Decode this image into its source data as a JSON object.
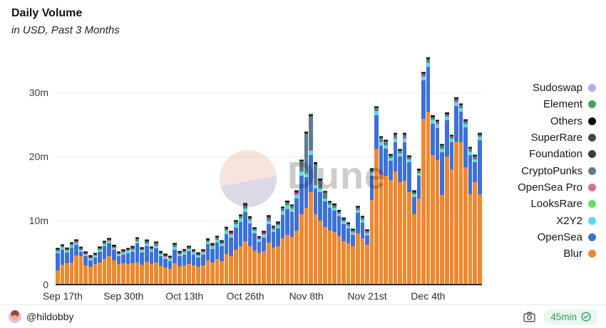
{
  "header": {
    "title": "Daily Volume",
    "subtitle": "in USD, Past 3 Months"
  },
  "watermark": {
    "text": "Dune"
  },
  "footer": {
    "author": "@hildobby",
    "camera_icon": "camera-icon",
    "badge": {
      "label": "45min",
      "check_icon": "check-circle-icon",
      "color": "#2ca05a",
      "bg": "#e9f7ef"
    }
  },
  "chart_data": {
    "type": "bar",
    "stacked": true,
    "title": "Daily Volume",
    "subtitle": "in USD, Past 3 Months",
    "unit": "USD (millions)",
    "grid": true,
    "legend_position": "right",
    "date_range": {
      "start": "Sep 16",
      "end": "Dec 15",
      "days": 91
    },
    "y_max": 35.6,
    "y_ticks": [
      {
        "label": "0",
        "value": 0
      },
      {
        "label": "10m",
        "value": 10
      },
      {
        "label": "20m",
        "value": 20
      },
      {
        "label": "30m",
        "value": 30
      }
    ],
    "x_ticks": [
      {
        "label": "Sep 17th",
        "day_index": 1
      },
      {
        "label": "Sep 30th",
        "day_index": 14
      },
      {
        "label": "Oct 13th",
        "day_index": 27
      },
      {
        "label": "Oct 26th",
        "day_index": 40
      },
      {
        "label": "Nov 8th",
        "day_index": 53
      },
      {
        "label": "Nov 21st",
        "day_index": 66
      },
      {
        "label": "Dec 4th",
        "day_index": 79
      }
    ],
    "series": [
      {
        "name": "Blur",
        "color": "#f0882e",
        "values": [
          2.2,
          3.1,
          3.3,
          3.5,
          4.6,
          4.4,
          3.0,
          2.8,
          3.2,
          3.4,
          4.0,
          4.5,
          3.8,
          3.2,
          3.3,
          3.2,
          3.3,
          3.5,
          3.1,
          3.6,
          3.2,
          3.4,
          2.9,
          2.7,
          2.5,
          3.3,
          2.9,
          3.0,
          3.2,
          3.0,
          2.8,
          3.0,
          3.8,
          3.4,
          4.0,
          3.7,
          4.8,
          4.5,
          5.4,
          6.0,
          6.8,
          6.0,
          5.3,
          5.0,
          5.2,
          6.6,
          5.8,
          6.0,
          7.2,
          7.8,
          7.5,
          8.5,
          11.0,
          12.0,
          14.5,
          11.0,
          10.0,
          9.0,
          8.5,
          8.2,
          7.6,
          6.8,
          6.4,
          6.0,
          8.0,
          7.2,
          6.2,
          13.2,
          21.2,
          17.3,
          17.0,
          16.3,
          17.7,
          16.0,
          16.2,
          14.5,
          11.0,
          13.5,
          25.9,
          27.0,
          20.2,
          19.5,
          14.0,
          20.0,
          18.0,
          22.4,
          22.3,
          18.4,
          14.1,
          16.0,
          14.1
        ]
      },
      {
        "name": "OpenSea",
        "color": "#3d70d8",
        "values": [
          2.7,
          2.4,
          1.7,
          2.3,
          1.6,
          0.7,
          1.4,
          1.0,
          1.0,
          1.7,
          2.0,
          2.0,
          1.6,
          1.2,
          1.4,
          1.7,
          1.8,
          2.9,
          1.9,
          2.4,
          1.9,
          2.3,
          1.5,
          1.3,
          1.2,
          2.2,
          1.5,
          1.7,
          2.0,
          1.7,
          1.4,
          1.7,
          2.5,
          2.2,
          2.6,
          2.3,
          3.1,
          2.9,
          3.5,
          3.8,
          4.5,
          3.6,
          2.7,
          1.7,
          2.2,
          2.9,
          2.4,
          2.8,
          3.7,
          4.0,
          3.8,
          5.0,
          6.0,
          4.8,
          5.8,
          4.0,
          4.5,
          4.0,
          3.5,
          3.4,
          3.1,
          2.7,
          2.4,
          1.8,
          3.2,
          2.5,
          1.5,
          3.8,
          5.3,
          4.4,
          4.3,
          3.1,
          4.6,
          4.0,
          6.1,
          4.6,
          2.7,
          3.5,
          6.0,
          7.0,
          5.0,
          5.0,
          6.7,
          5.7,
          4.3,
          5.5,
          4.7,
          6.2,
          6.2,
          3.1,
          8.5
        ]
      },
      {
        "name": "X2Y2",
        "color": "#5cd6f5",
        "values": [
          0.25,
          0.25,
          0.25,
          0.25,
          0.25,
          0.25,
          0.25,
          0.25,
          0.25,
          0.25,
          0.25,
          0.25,
          0.25,
          0.25,
          0.25,
          0.3,
          0.3,
          0.3,
          0.3,
          0.3,
          0.3,
          0.3,
          0.3,
          0.3,
          0.3,
          0.3,
          0.3,
          0.3,
          0.3,
          0.3,
          0.3,
          0.3,
          0.3,
          0.3,
          0.3,
          0.3,
          0.45,
          0.35,
          0.5,
          0.45,
          0.5,
          0.4,
          0.35,
          0.3,
          0.35,
          0.4,
          0.35,
          0.4,
          0.55,
          0.6,
          0.5,
          0.5,
          0.6,
          0.5,
          0.6,
          0.5,
          0.45,
          0.4,
          0.35,
          0.35,
          0.3,
          0.3,
          0.3,
          0.3,
          0.4,
          0.35,
          0.3,
          0.45,
          0.55,
          0.5,
          0.45,
          0.35,
          0.5,
          0.45,
          0.5,
          0.4,
          0.35,
          0.4,
          0.55,
          0.6,
          0.5,
          0.5,
          0.45,
          0.5,
          0.4,
          0.55,
          0.5,
          0.45,
          0.4,
          0.4,
          0.45
        ]
      },
      {
        "name": "LooksRare",
        "color": "#5de069",
        "value": 0.06
      },
      {
        "name": "OpenSea Pro",
        "color": "#dd6c9c",
        "value": 0.05
      },
      {
        "name": "CryptoPunks",
        "color": "#5e7b8d",
        "values": [
          0.15,
          0.15,
          0.12,
          0.15,
          0.2,
          0.15,
          0.12,
          0.1,
          0.12,
          0.2,
          0.2,
          0.15,
          0.15,
          0.12,
          0.12,
          0.15,
          0.2,
          0.3,
          0.15,
          0.3,
          0.15,
          0.3,
          0.12,
          0.1,
          0.1,
          0.3,
          0.12,
          0.15,
          0.15,
          0.12,
          0.1,
          0.12,
          0.2,
          0.15,
          0.3,
          0.2,
          0.25,
          0.2,
          0.25,
          0.3,
          0.5,
          0.25,
          0.2,
          0.15,
          0.2,
          0.5,
          0.2,
          0.2,
          0.3,
          0.3,
          0.3,
          0.3,
          1.5,
          6.2,
          5.3,
          3.2,
          1.2,
          0.8,
          0.3,
          0.3,
          0.25,
          0.25,
          0.2,
          0.2,
          0.3,
          0.3,
          0.2,
          0.3,
          0.4,
          0.6,
          0.5,
          0.25,
          0.5,
          0.35,
          0.5,
          0.3,
          0.25,
          0.3,
          0.4,
          0.5,
          0.35,
          0.35,
          0.4,
          0.3,
          0.3,
          0.4,
          0.4,
          0.35,
          0.4,
          0.4,
          0.25
        ]
      },
      {
        "name": "Foundation",
        "color": "#3d3d3d",
        "value": 0.09
      },
      {
        "name": "SuperRare",
        "color": "#474747",
        "value": 0.06
      },
      {
        "name": "Others",
        "color": "#0a0a0a",
        "value": 0.13
      },
      {
        "name": "Element",
        "color": "#41a65f",
        "value": 0.07
      },
      {
        "name": "Sudoswap",
        "color": "#b5a9ef",
        "value": 0.02
      }
    ]
  }
}
